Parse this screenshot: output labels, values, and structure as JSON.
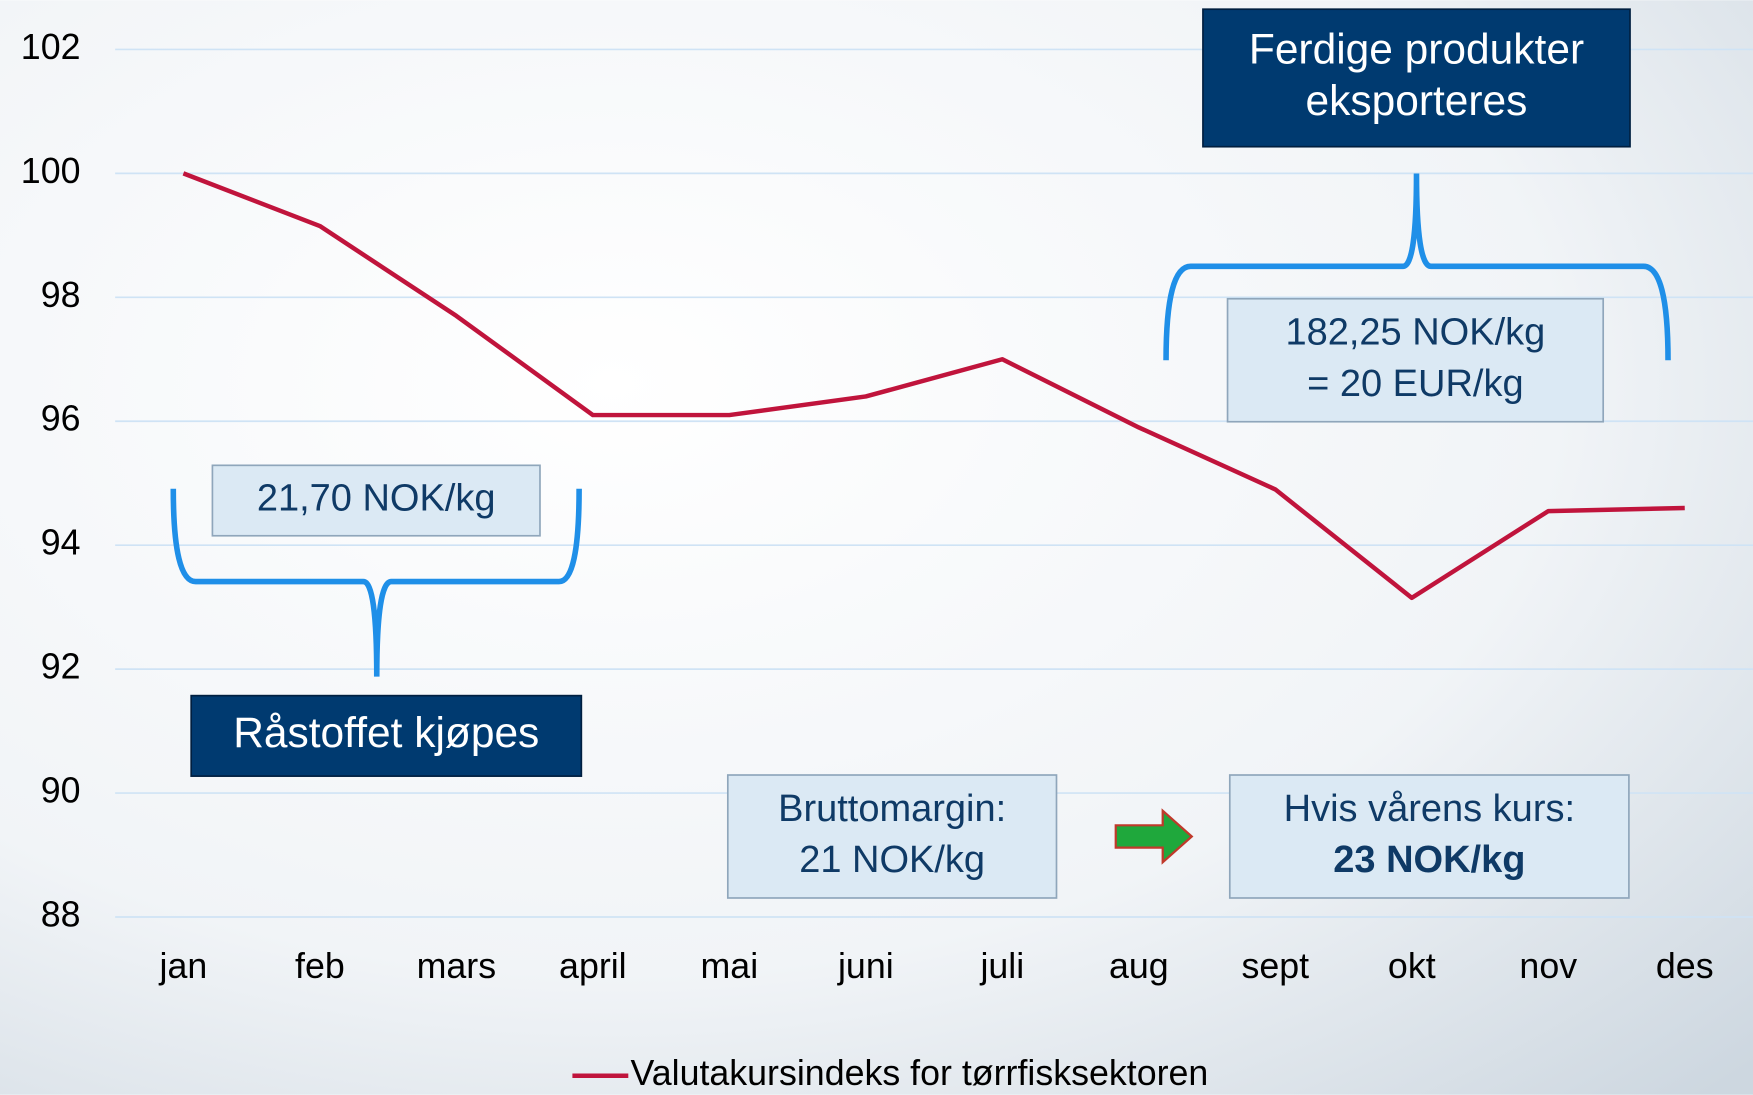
{
  "chart_data": {
    "type": "line",
    "categories": [
      "jan",
      "feb",
      "mars",
      "april",
      "mai",
      "juni",
      "juli",
      "aug",
      "sept",
      "okt",
      "nov",
      "des"
    ],
    "series": [
      {
        "name": "Valutakursindeks for tørrfisksektoren",
        "color": "#c0143c",
        "values": [
          100,
          99.15,
          97.7,
          96.1,
          96.1,
          96.4,
          97.0,
          95.9,
          94.9,
          93.15,
          94.55,
          94.6
        ]
      }
    ],
    "ylim": [
      88,
      102
    ],
    "yticks": [
      88,
      90,
      92,
      94,
      96,
      98,
      100,
      102
    ],
    "grid": true,
    "legend": "bottom",
    "annotations": {
      "export_title": [
        "Ferdige produkter",
        "eksporteres"
      ],
      "export_price": [
        "182,25 NOK/kg",
        "= 20 EUR/kg"
      ],
      "raw_price": [
        "21,70 NOK/kg"
      ],
      "raw_title": [
        "Råstoffet kjøpes"
      ],
      "margin": [
        "Bruttomargin:",
        "21 NOK/kg"
      ],
      "spring": [
        "Hvis vårens kurs:",
        "23 NOK/kg"
      ]
    }
  }
}
